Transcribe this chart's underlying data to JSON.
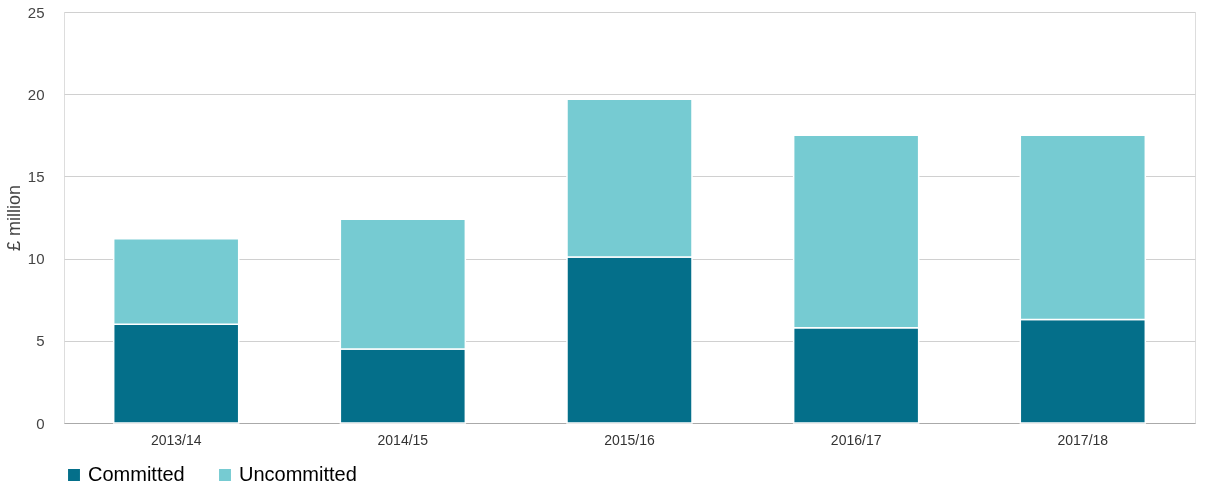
{
  "chart_data": {
    "type": "bar",
    "ylabel": "£ million",
    "categories": [
      "2013/14",
      "2014/15",
      "2015/16",
      "2016/17",
      "2017/18"
    ],
    "series": [
      {
        "name": "Committed",
        "color": "#046f8a",
        "values": [
          6.0,
          4.5,
          10.1,
          5.8,
          6.3
        ]
      },
      {
        "name": "Uncommitted",
        "color": "#76cbd2",
        "values": [
          5.2,
          7.9,
          9.6,
          11.7,
          11.2
        ]
      }
    ],
    "stacked": true,
    "ylim": [
      0,
      25
    ],
    "yticks": [
      0,
      5,
      10,
      15,
      20,
      25
    ],
    "grid": "y",
    "legend": "bottom"
  }
}
